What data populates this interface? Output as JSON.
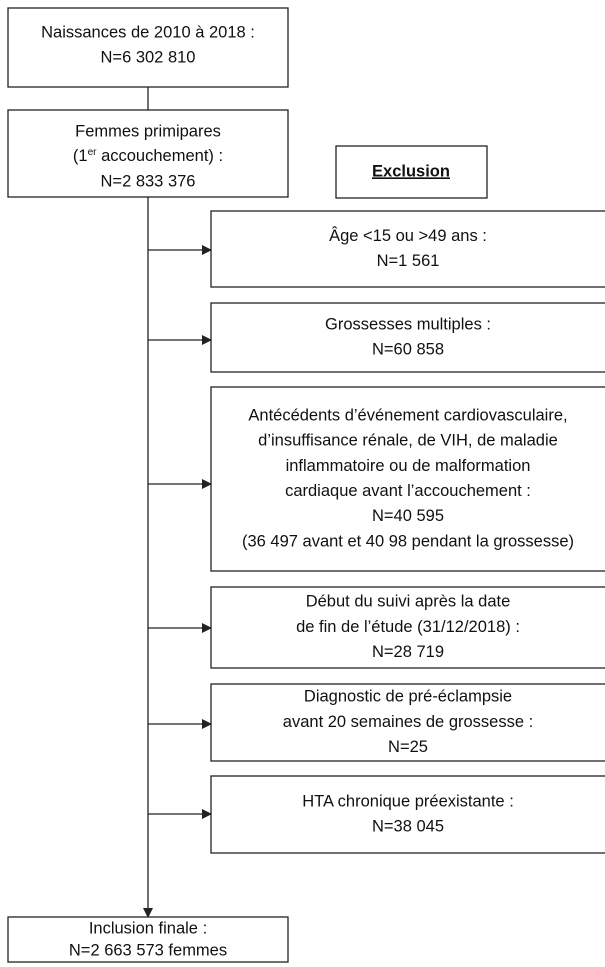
{
  "start": {
    "lines": [
      "Naissances de 2010 à 2018 :",
      "N=6 302 810"
    ]
  },
  "primiparous": {
    "line1": "Femmes primipares",
    "line2": {
      "before": "(1",
      "sup": "er",
      "after": " accouchement) :"
    },
    "line3": "N=2 833 376"
  },
  "exclusion_header": "Exclusion",
  "exclusions": [
    {
      "lines": [
        "Âge <15 ou >49 ans :",
        "N=1 561"
      ]
    },
    {
      "lines": [
        "Grossesses multiples :",
        "N=60 858"
      ]
    },
    {
      "lines": [
        "Antécédents d’événement cardiovasculaire,",
        "d’insuffisance rénale, de VIH, de maladie",
        "inflammatoire ou de malformation",
        "cardiaque avant l’accouchement :",
        "N=40 595",
        "(36 497 avant et 40 98 pendant la grossesse)"
      ]
    },
    {
      "lines": [
        "Début du suivi après la date",
        "de fin de l’étude (31/12/2018) :",
        "N=28 719"
      ]
    },
    {
      "lines": [
        "Diagnostic de pré-éclampsie",
        "avant 20 semaines de grossesse :",
        "N=25"
      ]
    },
    {
      "lines": [
        "HTA chronique préexistante :",
        "N=38 045"
      ]
    }
  ],
  "final": {
    "lines": [
      "Inclusion finale :",
      "N=2 663 573 femmes"
    ]
  }
}
